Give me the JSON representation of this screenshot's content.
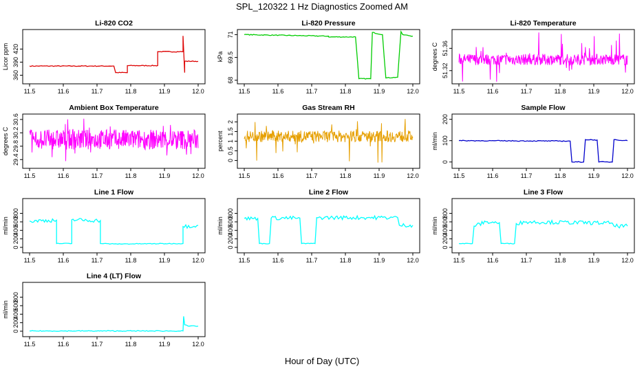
{
  "title": "SPL_120322  1 Hz Diagnostics Zoomed AM",
  "xlabel": "Hour of Day (UTC)",
  "chart_data": [
    {
      "id": "co2",
      "type": "line",
      "title": "Li-820 CO2",
      "ylabel": "Licor ppm",
      "color": "#dd0000",
      "xlim": [
        11.5,
        12.0
      ],
      "xticks": [
        11.5,
        11.6,
        11.7,
        11.8,
        11.9,
        12.0
      ],
      "ylim": [
        345,
        460
      ],
      "yticks": [
        360,
        390,
        420
      ],
      "series": [
        {
          "x": [
            11.5,
            11.75,
            11.75,
            11.755,
            11.755,
            11.79,
            11.79,
            11.88,
            11.88,
            11.955,
            11.955,
            11.96,
            11.96,
            12.0
          ],
          "y": [
            381,
            381,
            381,
            366,
            366,
            366,
            382,
            382,
            414,
            414,
            450,
            366,
            392,
            392
          ]
        }
      ]
    },
    {
      "id": "pressure",
      "type": "line",
      "title": "Li-820 Pressure",
      "ylabel": "kPa",
      "color": "#00cc00",
      "xlim": [
        11.5,
        12.0
      ],
      "xticks": [
        11.5,
        11.6,
        11.7,
        11.8,
        11.9,
        12.0
      ],
      "ylim": [
        67.9,
        71.2
      ],
      "yticks": [
        68.0,
        69.5,
        71.0
      ],
      "series": [
        {
          "x": [
            11.5,
            11.75,
            11.75,
            11.83,
            11.84,
            11.84,
            11.875,
            11.88,
            11.91,
            11.92,
            11.955,
            11.965,
            11.97,
            12.0
          ],
          "y": [
            71.0,
            70.9,
            70.85,
            70.85,
            68.1,
            68.1,
            68.1,
            71.15,
            71.0,
            68.15,
            68.2,
            71.2,
            71.0,
            70.9
          ]
        }
      ]
    },
    {
      "id": "li820temp",
      "type": "line",
      "title": "Li-820 Temperature",
      "ylabel": "degrees C",
      "color": "#ff00ff",
      "xlim": [
        11.5,
        12.0
      ],
      "xticks": [
        11.5,
        11.6,
        11.7,
        11.8,
        11.9,
        12.0
      ],
      "ylim": [
        51.3,
        51.39
      ],
      "yticks": [
        51.32,
        51.36
      ],
      "series": [
        {
          "x": [
            11.5,
            12.0
          ],
          "y": [
            51.34,
            51.34
          ],
          "band": [
            51.33,
            51.35
          ],
          "noise_range": [
            51.3,
            51.39
          ]
        }
      ]
    },
    {
      "id": "ambient",
      "type": "line",
      "title": "Ambient Box Temperature",
      "ylabel": "degrees C",
      "color": "#ff00ff",
      "xlim": [
        11.5,
        12.0
      ],
      "xticks": [
        11.5,
        11.6,
        11.7,
        11.8,
        11.9,
        12.0
      ],
      "ylim": [
        29.2,
        30.7
      ],
      "yticks": [
        29.4,
        29.8,
        30.2,
        30.6
      ],
      "series": [
        {
          "x": [
            11.5,
            12.0
          ],
          "y": [
            30.0,
            30.0
          ],
          "band": [
            29.7,
            30.3
          ],
          "noise_range": [
            29.3,
            30.65
          ]
        }
      ]
    },
    {
      "id": "rh",
      "type": "line",
      "title": "Gas Stream RH",
      "ylabel": "percent",
      "color": "#e69f00",
      "xlim": [
        11.5,
        12.0
      ],
      "xticks": [
        11.5,
        11.6,
        11.7,
        11.8,
        11.9,
        12.0
      ],
      "ylim": [
        -0.3,
        2.3
      ],
      "yticks": [
        0.0,
        0.5,
        1.0,
        1.5,
        2.0
      ],
      "series": [
        {
          "x": [
            11.5,
            12.0
          ],
          "y": [
            1.25,
            1.25
          ],
          "band": [
            0.95,
            1.55
          ],
          "noise_range": [
            -0.2,
            2.2
          ]
        }
      ]
    },
    {
      "id": "sample",
      "type": "line",
      "title": "Sample Flow",
      "ylabel": "ml/min",
      "color": "#0000cc",
      "xlim": [
        11.5,
        12.0
      ],
      "xticks": [
        11.5,
        11.6,
        11.7,
        11.8,
        11.9,
        12.0
      ],
      "ylim": [
        -20,
        215
      ],
      "yticks": [
        0,
        100,
        200
      ],
      "series": [
        {
          "x": [
            11.5,
            11.83,
            11.835,
            11.87,
            11.875,
            11.91,
            11.915,
            11.955,
            11.96,
            12.0
          ],
          "y": [
            100,
            98,
            0,
            0,
            105,
            103,
            0,
            0,
            105,
            100
          ]
        }
      ]
    },
    {
      "id": "line1",
      "type": "line",
      "title": "Line 1 Flow",
      "ylabel": "ml/min",
      "color": "#00ffff",
      "xlim": [
        11.5,
        12.0
      ],
      "xticks": [
        11.5,
        11.6,
        11.7,
        11.8,
        11.9,
        12.0
      ],
      "ylim": [
        -80,
        1100
      ],
      "yticks": [
        0,
        200,
        400,
        600,
        800
      ],
      "series": [
        {
          "x": [
            11.5,
            11.58,
            11.58,
            11.625,
            11.625,
            11.71,
            11.71,
            11.75,
            11.75,
            11.955,
            11.955,
            12.0
          ],
          "y": [
            620,
            640,
            90,
            90,
            650,
            630,
            90,
            80,
            80,
            90,
            490,
            520
          ]
        }
      ]
    },
    {
      "id": "line2",
      "type": "line",
      "title": "Line 2 Flow",
      "ylabel": "ml/min",
      "color": "#00ffff",
      "xlim": [
        11.5,
        12.0
      ],
      "xticks": [
        11.5,
        11.6,
        11.7,
        11.8,
        11.9,
        12.0
      ],
      "ylim": [
        -80,
        1100
      ],
      "yticks": [
        0,
        200,
        400,
        600,
        800
      ],
      "series": [
        {
          "x": [
            11.5,
            11.54,
            11.545,
            11.575,
            11.58,
            11.665,
            11.67,
            11.71,
            11.715,
            11.955,
            11.96,
            12.0
          ],
          "y": [
            680,
            680,
            90,
            90,
            690,
            690,
            90,
            90,
            700,
            700,
            520,
            520
          ]
        }
      ]
    },
    {
      "id": "line3",
      "type": "line",
      "title": "Line 3 Flow",
      "ylabel": "ml/min",
      "color": "#00ffff",
      "xlim": [
        11.5,
        12.0
      ],
      "xticks": [
        11.5,
        11.6,
        11.7,
        11.8,
        11.9,
        12.0
      ],
      "ylim": [
        -80,
        1100
      ],
      "yticks": [
        0,
        200,
        400,
        600,
        800
      ],
      "series": [
        {
          "x": [
            11.5,
            11.54,
            11.545,
            11.58,
            11.62,
            11.625,
            11.665,
            11.67,
            11.7,
            11.955,
            11.96,
            12.0
          ],
          "y": [
            90,
            90,
            500,
            600,
            580,
            90,
            90,
            560,
            600,
            570,
            500,
            500
          ]
        }
      ]
    },
    {
      "id": "line4",
      "type": "line",
      "title": "Line 4 (LT) Flow",
      "ylabel": "ml/min",
      "color": "#00ffff",
      "xlim": [
        11.5,
        12.0
      ],
      "xticks": [
        11.5,
        11.6,
        11.7,
        11.8,
        11.9,
        12.0
      ],
      "ylim": [
        -80,
        1100
      ],
      "yticks": [
        0,
        200,
        400,
        600,
        800
      ],
      "series": [
        {
          "x": [
            11.5,
            11.955,
            11.957,
            11.96,
            11.97,
            12.0
          ],
          "y": [
            5,
            5,
            350,
            150,
            120,
            120
          ]
        }
      ]
    }
  ]
}
